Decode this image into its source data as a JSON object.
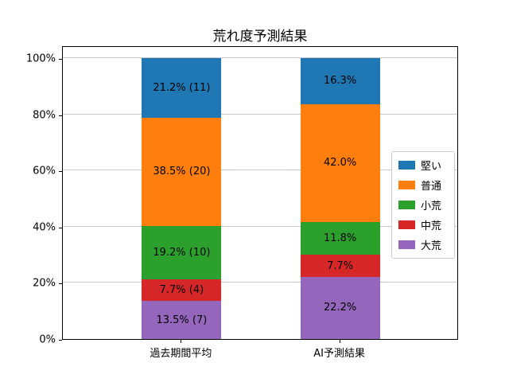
{
  "chart_data": {
    "type": "bar",
    "stacked": true,
    "title": "荒れ度予測結果",
    "categories": [
      "過去期間平均",
      "AI予測結果"
    ],
    "series": [
      {
        "name": "堅い",
        "color": "#1f77b4",
        "values": [
          21.2,
          16.3
        ],
        "bar_labels": [
          "21.2% (11)",
          "16.3%"
        ]
      },
      {
        "name": "普通",
        "color": "#ff7f0e",
        "values": [
          38.5,
          42.0
        ],
        "bar_labels": [
          "38.5% (20)",
          "42.0%"
        ]
      },
      {
        "name": "小荒",
        "color": "#2ca02c",
        "values": [
          19.2,
          11.8
        ],
        "bar_labels": [
          "19.2% (10)",
          "11.8%"
        ]
      },
      {
        "name": "中荒",
        "color": "#d62728",
        "values": [
          7.7,
          7.7
        ],
        "bar_labels": [
          "7.7% (4)",
          "7.7%"
        ]
      },
      {
        "name": "大荒",
        "color": "#9467bd",
        "values": [
          13.5,
          22.2
        ],
        "bar_labels": [
          "13.5% (7)",
          "22.2%"
        ]
      }
    ],
    "counts_shown_first_category": [
      11,
      20,
      10,
      4,
      7
    ],
    "ylim": [
      0,
      100
    ],
    "ytick_values": [
      0,
      20,
      40,
      60,
      80,
      100
    ],
    "ytick_labels": [
      "0%",
      "20%",
      "40%",
      "60%",
      "80%",
      "100%"
    ],
    "grid": true,
    "legend_position": "center-right",
    "legend_entries": [
      "堅い",
      "普通",
      "小荒",
      "中荒",
      "大荒"
    ]
  }
}
